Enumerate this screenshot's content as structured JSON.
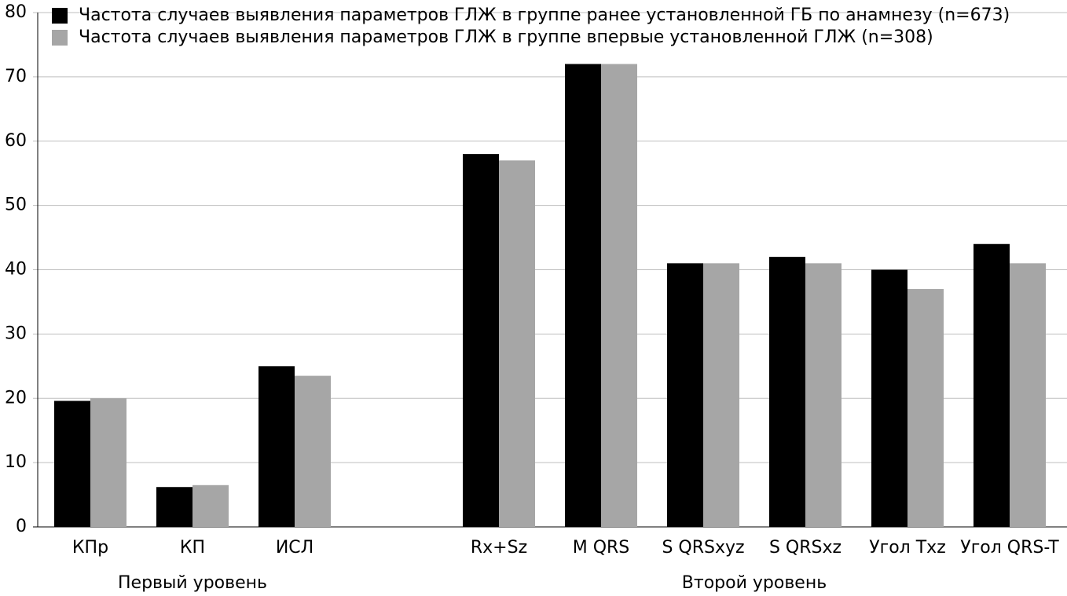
{
  "chart_data": {
    "type": "bar",
    "categories": [
      "КПр",
      "КП",
      "ИСЛ",
      null,
      "Rx+Sz",
      "M QRS",
      "S QRSxyz",
      "S QRSxz",
      "Угол Txz",
      "Угол QRS-T"
    ],
    "series": [
      {
        "name": "Частота случаев выявления параметров ГЛЖ в группе ранее установленной ГБ по анамнезу (n=673)",
        "color": "#000000",
        "values": [
          19.6,
          6.2,
          25,
          null,
          58,
          72,
          41,
          42,
          40,
          44
        ]
      },
      {
        "name": "Частота случаев выявления параметров ГЛЖ в группе впервые установленной ГЛЖ (n=308)",
        "color": "#a6a6a6",
        "values": [
          20,
          6.5,
          23.5,
          null,
          57,
          72,
          41,
          41,
          37,
          41
        ]
      }
    ],
    "groups": [
      "Первый уровень",
      "Второй уровень"
    ],
    "ylim": [
      0,
      80
    ],
    "yticks": [
      0,
      10,
      20,
      30,
      40,
      50,
      60,
      70,
      80
    ],
    "grid": true
  }
}
